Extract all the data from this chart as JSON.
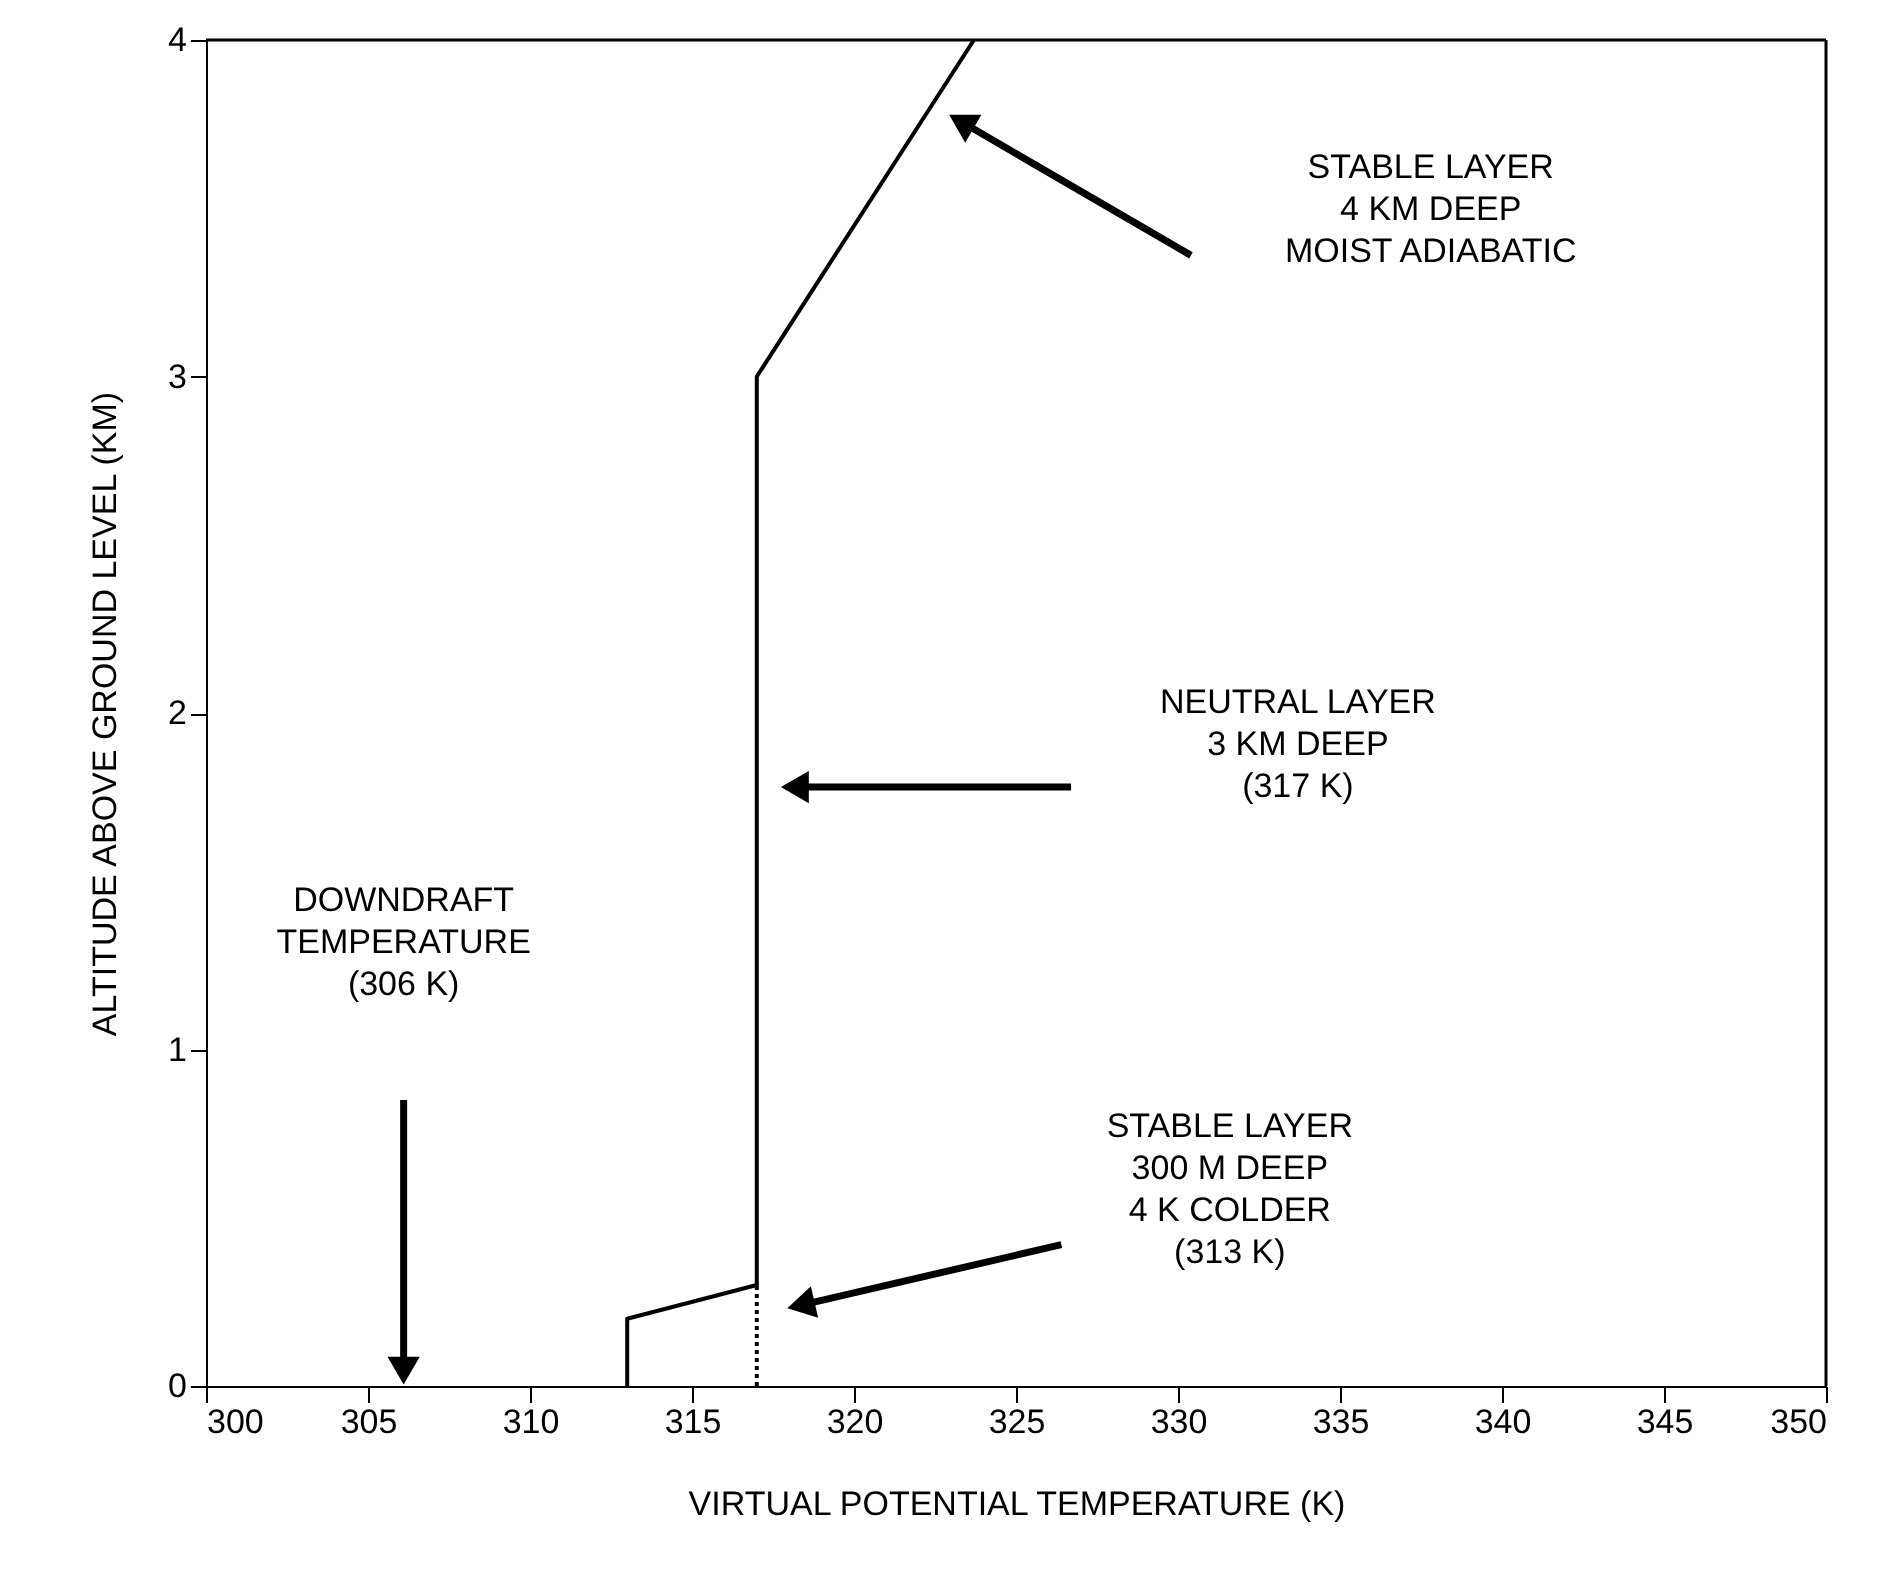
{
  "chart_data": {
    "type": "line",
    "xlabel": "VIRTUAL POTENTIAL TEMPERATURE  (K)",
    "ylabel": "ALTITUDE ABOVE GROUND LEVEL  (KM)",
    "series": [
      {
        "color": "#000000",
        "line_style": "solid",
        "x": [
          313,
          313,
          317,
          317,
          323.7
        ],
        "values": [
          0,
          0.2,
          0.3,
          3,
          4
        ]
      },
      {
        "color": "#000000",
        "line_style": "dotted",
        "x": [
          317,
          317
        ],
        "values": [
          0,
          0.3
        ]
      }
    ],
    "xlim": [
      300,
      350
    ],
    "xticks": [
      300,
      305,
      310,
      315,
      320,
      325,
      330,
      335,
      340,
      345,
      350
    ],
    "ylim": [
      0,
      4
    ],
    "yticks": [
      0,
      1,
      2,
      3,
      4
    ],
    "grid": false,
    "marker": "none",
    "annotations": [
      "STABLE LAYER\n4 KM DEEP\nMOIST ADIABATIC",
      "NEUTRAL LAYER\n3 KM DEEP\n(317 K)",
      "DOWNDRAFT\nTEMPERATURE\n(306 K)",
      "STABLE LAYER\n300 M DEEP\n4 K COLDER\n(313 K)"
    ]
  }
}
